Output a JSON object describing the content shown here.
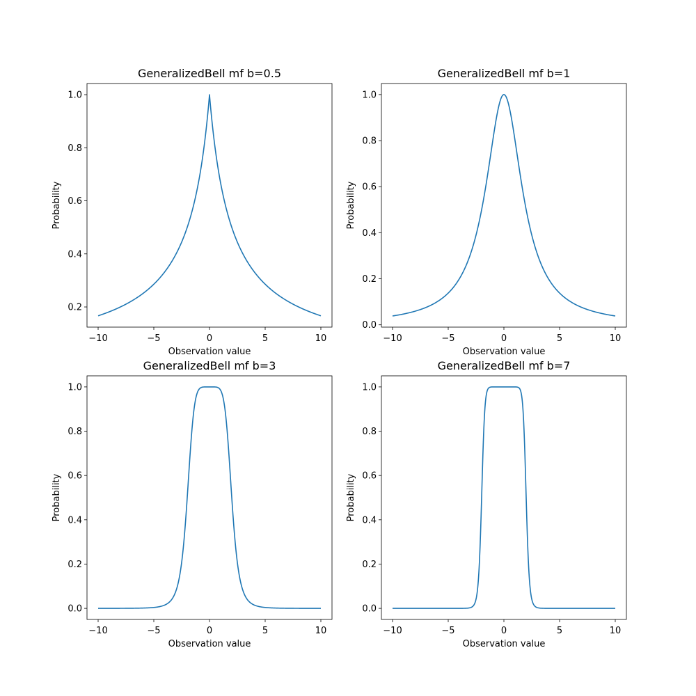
{
  "chart_data": [
    {
      "type": "line",
      "title": "GeneralizedBell mf b=0.5",
      "xlabel": "Observation value",
      "ylabel": "Probability",
      "function": "generalized bell membership, a=2, b=0.5, c=0",
      "x_ticks": [
        "−10",
        "−5",
        "0",
        "5",
        "10"
      ],
      "y_ticks": [
        "0.2",
        "0.4",
        "0.6",
        "0.8",
        "1.0"
      ],
      "xlim": [
        -11,
        11
      ],
      "ylim": [
        0.124,
        1.042
      ],
      "grid": false,
      "color": "#1f77b4",
      "series": [
        {
          "x": [
            -10,
            -8,
            -6,
            -5,
            -4,
            -3,
            -2,
            -1,
            -0.5,
            0,
            0.5,
            1,
            2,
            3,
            4,
            5,
            6,
            8,
            10
          ],
          "y": [
            0.167,
            0.2,
            0.25,
            0.286,
            0.333,
            0.4,
            0.5,
            0.667,
            0.8,
            1.0,
            0.8,
            0.667,
            0.5,
            0.4,
            0.333,
            0.286,
            0.25,
            0.2,
            0.167
          ]
        }
      ]
    },
    {
      "type": "line",
      "title": "GeneralizedBell mf b=1",
      "xlabel": "Observation value",
      "ylabel": "Probability",
      "function": "generalized bell membership, a=2, b=1, c=0",
      "x_ticks": [
        "−10",
        "−5",
        "0",
        "5",
        "10"
      ],
      "y_ticks": [
        "0.0",
        "0.2",
        "0.4",
        "0.6",
        "0.8",
        "1.0"
      ],
      "xlim": [
        -11,
        11
      ],
      "ylim": [
        -0.01,
        1.048
      ],
      "grid": false,
      "color": "#1f77b4",
      "series": [
        {
          "x": [
            -10,
            -8,
            -6,
            -5,
            -4,
            -3,
            -2,
            -1,
            -0.5,
            0,
            0.5,
            1,
            2,
            3,
            4,
            5,
            6,
            8,
            10
          ],
          "y": [
            0.038,
            0.059,
            0.1,
            0.138,
            0.2,
            0.308,
            0.5,
            0.8,
            0.941,
            1.0,
            0.941,
            0.8,
            0.5,
            0.308,
            0.2,
            0.138,
            0.1,
            0.059,
            0.038
          ]
        }
      ]
    },
    {
      "type": "line",
      "title": "GeneralizedBell mf b=3",
      "xlabel": "Observation value",
      "ylabel": "Probability",
      "function": "generalized bell membership, a=2, b=3, c=0",
      "x_ticks": [
        "−10",
        "−5",
        "0",
        "5",
        "10"
      ],
      "y_ticks": [
        "0.0",
        "0.2",
        "0.4",
        "0.6",
        "0.8",
        "1.0"
      ],
      "xlim": [
        -11,
        11
      ],
      "ylim": [
        -0.05,
        1.05
      ],
      "grid": false,
      "color": "#1f77b4",
      "series": [
        {
          "x": [
            -10,
            -6,
            -4,
            -3,
            -2.5,
            -2,
            -1.5,
            -1,
            0,
            1,
            1.5,
            2,
            2.5,
            3,
            4,
            6,
            10
          ],
          "y": [
            0.0,
            0.001,
            0.015,
            0.081,
            0.204,
            0.5,
            0.849,
            0.985,
            1.0,
            0.985,
            0.849,
            0.5,
            0.204,
            0.081,
            0.015,
            0.001,
            0.0
          ]
        }
      ]
    },
    {
      "type": "line",
      "title": "GeneralizedBell mf b=7",
      "xlabel": "Observation value",
      "ylabel": "Probability",
      "function": "generalized bell membership, a=2, b=7, c=0",
      "x_ticks": [
        "−10",
        "−5",
        "0",
        "5",
        "10"
      ],
      "y_ticks": [
        "0.0",
        "0.2",
        "0.4",
        "0.6",
        "0.8",
        "1.0"
      ],
      "xlim": [
        -11,
        11
      ],
      "ylim": [
        -0.05,
        1.05
      ],
      "grid": false,
      "color": "#1f77b4",
      "series": [
        {
          "x": [
            -10,
            -4,
            -3,
            -2.5,
            -2.2,
            -2,
            -1.8,
            -1.5,
            -1,
            0,
            1,
            1.5,
            1.8,
            2,
            2.2,
            2.5,
            3,
            4,
            10
          ],
          "y": [
            0.0,
            0.0,
            0.003,
            0.044,
            0.209,
            0.5,
            0.815,
            0.982,
            1.0,
            1.0,
            1.0,
            0.982,
            0.815,
            0.5,
            0.209,
            0.044,
            0.003,
            0.0,
            0.0
          ]
        }
      ]
    }
  ]
}
